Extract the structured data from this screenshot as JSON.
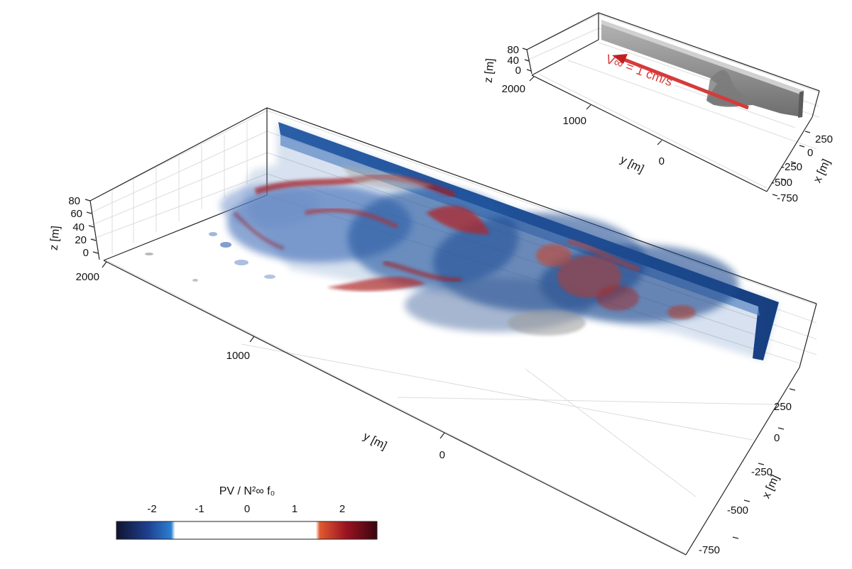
{
  "main_plot": {
    "z_axis": {
      "label": "z [m]",
      "ticks": [
        "80",
        "60",
        "40",
        "20",
        "0"
      ]
    },
    "y_axis": {
      "label": "y [m]",
      "ticks": [
        "2000",
        "1000",
        "0"
      ]
    },
    "x_axis": {
      "label": "x [m]",
      "ticks": [
        "250",
        "0",
        "-250",
        "-500",
        "-750"
      ]
    }
  },
  "inset_plot": {
    "z_axis": {
      "label": "z [m]",
      "ticks": [
        "80",
        "40",
        "0"
      ]
    },
    "y_axis": {
      "label": "y [m]",
      "ticks": [
        "2000",
        "1000",
        "0"
      ]
    },
    "x_axis": {
      "label": "x [m]",
      "ticks": [
        "250",
        "0",
        "-250",
        "-500",
        "-750"
      ]
    },
    "flow_annotation": "V∞ = 1 cm/s",
    "arrow_color": "#d63a3a",
    "terrain_color": "#8e8e8e"
  },
  "colorbar": {
    "label": "PV / N²∞ f₀",
    "ticks": [
      "-2",
      "-1",
      "0",
      "1",
      "2"
    ],
    "colors": [
      "#0f1430",
      "#1e3f8f",
      "#2d7fd1",
      "#ffffff",
      "#ffffff",
      "#e05a2e",
      "#9c1322",
      "#3a0510"
    ]
  }
}
